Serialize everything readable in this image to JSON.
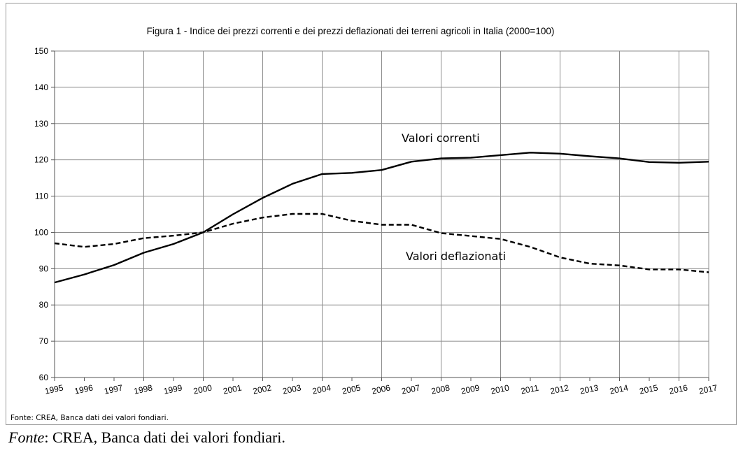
{
  "chart_data": {
    "type": "line",
    "title": "Figura 1 -  Indice dei prezzi correnti e dei prezzi deflazionati dei terreni agricoli in Italia (2000=100)",
    "x": [
      "1995",
      "1996",
      "1997",
      "1998",
      "1999",
      "2000",
      "2001",
      "2002",
      "2003",
      "2004",
      "2005",
      "2006",
      "2007",
      "2008",
      "2009",
      "2010",
      "2011",
      "2012",
      "2013",
      "2014",
      "2015",
      "2016",
      "2017"
    ],
    "yticks": [
      "60",
      "70",
      "80",
      "90",
      "100",
      "110",
      "120",
      "130",
      "140",
      "150"
    ],
    "ylim": [
      60,
      150
    ],
    "grid": true,
    "series": [
      {
        "name": "Valori correnti",
        "style": "solid",
        "values": [
          86.2,
          88.4,
          91.0,
          94.4,
          96.8,
          100.0,
          105.0,
          109.5,
          113.4,
          116.1,
          116.4,
          117.2,
          119.5,
          120.4,
          120.6,
          121.3,
          122.0,
          121.7,
          121.0,
          120.4,
          119.4,
          119.2,
          119.5
        ]
      },
      {
        "name": "Valori deflazionati",
        "style": "dashed",
        "values": [
          97.0,
          96.0,
          96.8,
          98.4,
          99.1,
          100.0,
          102.4,
          104.1,
          105.1,
          105.1,
          103.2,
          102.1,
          102.1,
          99.8,
          99.0,
          98.2,
          96.0,
          93.1,
          91.4,
          90.9,
          89.8,
          89.8,
          89.0
        ]
      }
    ],
    "source_note": "Fonte: CREA, Banca dati dei valori fondiari."
  },
  "caption": {
    "label": "Fonte",
    "text": ": CREA, Banca dati dei valori fondiari."
  },
  "colors": {
    "line": "#000000",
    "grid": "#8c8c8c",
    "axis": "#555555"
  }
}
